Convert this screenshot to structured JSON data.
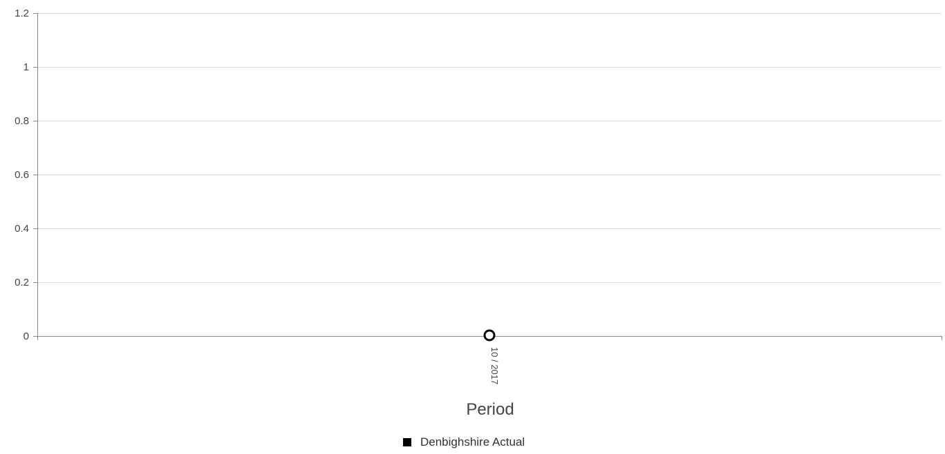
{
  "chart_data": {
    "type": "line",
    "title": "",
    "xlabel": "Period",
    "ylabel": "",
    "categories": [
      "10 / 2017"
    ],
    "ylim": [
      0,
      1.2
    ],
    "yticks": [
      "0",
      "0.2",
      "0.4",
      "0.6",
      "0.8",
      "1",
      "1.2"
    ],
    "ytick_values": [
      0,
      0.2,
      0.4,
      0.6,
      0.8,
      1,
      1.2
    ],
    "grid": true,
    "legend_position": "bottom",
    "series": [
      {
        "name": "Denbighshire Actual",
        "values": [
          0
        ],
        "color": "#000000",
        "marker": "hollow-circle"
      }
    ]
  },
  "colors": {
    "gridline": "#dddddd",
    "axis": "#888888",
    "text": "#444444"
  }
}
